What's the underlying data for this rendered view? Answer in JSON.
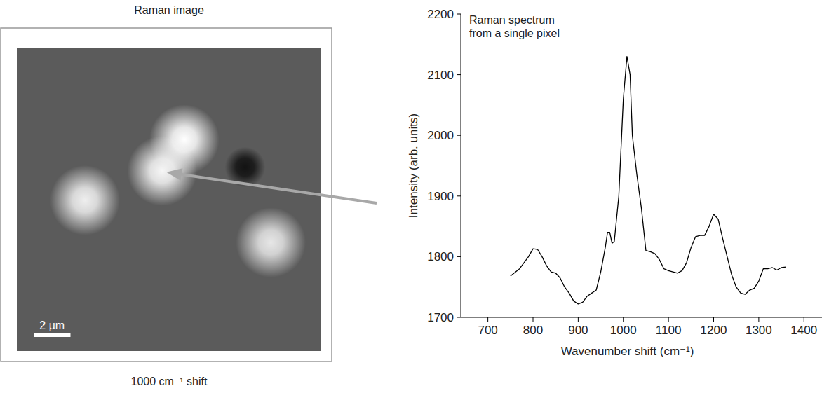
{
  "image": {
    "title": "Raman image",
    "caption": "1000 cm⁻¹ shift",
    "scale_bar": "2 µm",
    "scale_bar_um": 2,
    "size_um": 16.5,
    "spots": [
      {
        "x": 9.1,
        "y": 5.0,
        "brightness": 1.0
      },
      {
        "x": 7.9,
        "y": 6.7,
        "brightness": 0.95
      },
      {
        "x": 3.7,
        "y": 8.3,
        "brightness": 0.9
      },
      {
        "x": 13.8,
        "y": 10.6,
        "brightness": 0.85
      },
      {
        "x": 12.4,
        "y": 6.5,
        "brightness": -0.8
      }
    ]
  },
  "chart_data": {
    "type": "line",
    "annotation": [
      "Raman spectrum",
      "from a single pixel"
    ],
    "x_label": "Wavenumber shift (cm⁻¹)",
    "y_label": "Intensity (arb. units)",
    "color": "#000000",
    "x": [
      750,
      770,
      790,
      800,
      810,
      820,
      830,
      840,
      850,
      860,
      870,
      880,
      890,
      900,
      910,
      920,
      930,
      940,
      950,
      960,
      965,
      970,
      975,
      980,
      990,
      1000,
      1008,
      1015,
      1020,
      1030,
      1040,
      1050,
      1060,
      1070,
      1080,
      1090,
      1100,
      1110,
      1120,
      1130,
      1140,
      1150,
      1160,
      1170,
      1180,
      1190,
      1200,
      1210,
      1220,
      1230,
      1240,
      1250,
      1260,
      1270,
      1280,
      1290,
      1300,
      1310,
      1320,
      1330,
      1340,
      1350,
      1360
    ],
    "values": [
      1768,
      1780,
      1800,
      1813,
      1812,
      1800,
      1785,
      1775,
      1773,
      1765,
      1750,
      1740,
      1727,
      1722,
      1725,
      1735,
      1740,
      1745,
      1775,
      1815,
      1840,
      1840,
      1822,
      1825,
      1900,
      2060,
      2130,
      2100,
      2000,
      1935,
      1880,
      1810,
      1808,
      1805,
      1795,
      1780,
      1777,
      1775,
      1773,
      1777,
      1790,
      1815,
      1833,
      1835,
      1835,
      1850,
      1870,
      1862,
      1830,
      1800,
      1770,
      1750,
      1740,
      1738,
      1745,
      1748,
      1760,
      1780,
      1780,
      1782,
      1778,
      1782,
      1783
    ],
    "xlim": [
      640,
      1440
    ],
    "ylim": [
      1700,
      2200
    ],
    "xticks": [
      700,
      800,
      900,
      1000,
      1100,
      1200,
      1300,
      1400
    ],
    "yticks": [
      1700,
      1800,
      1900,
      2000,
      2100,
      2200
    ]
  }
}
